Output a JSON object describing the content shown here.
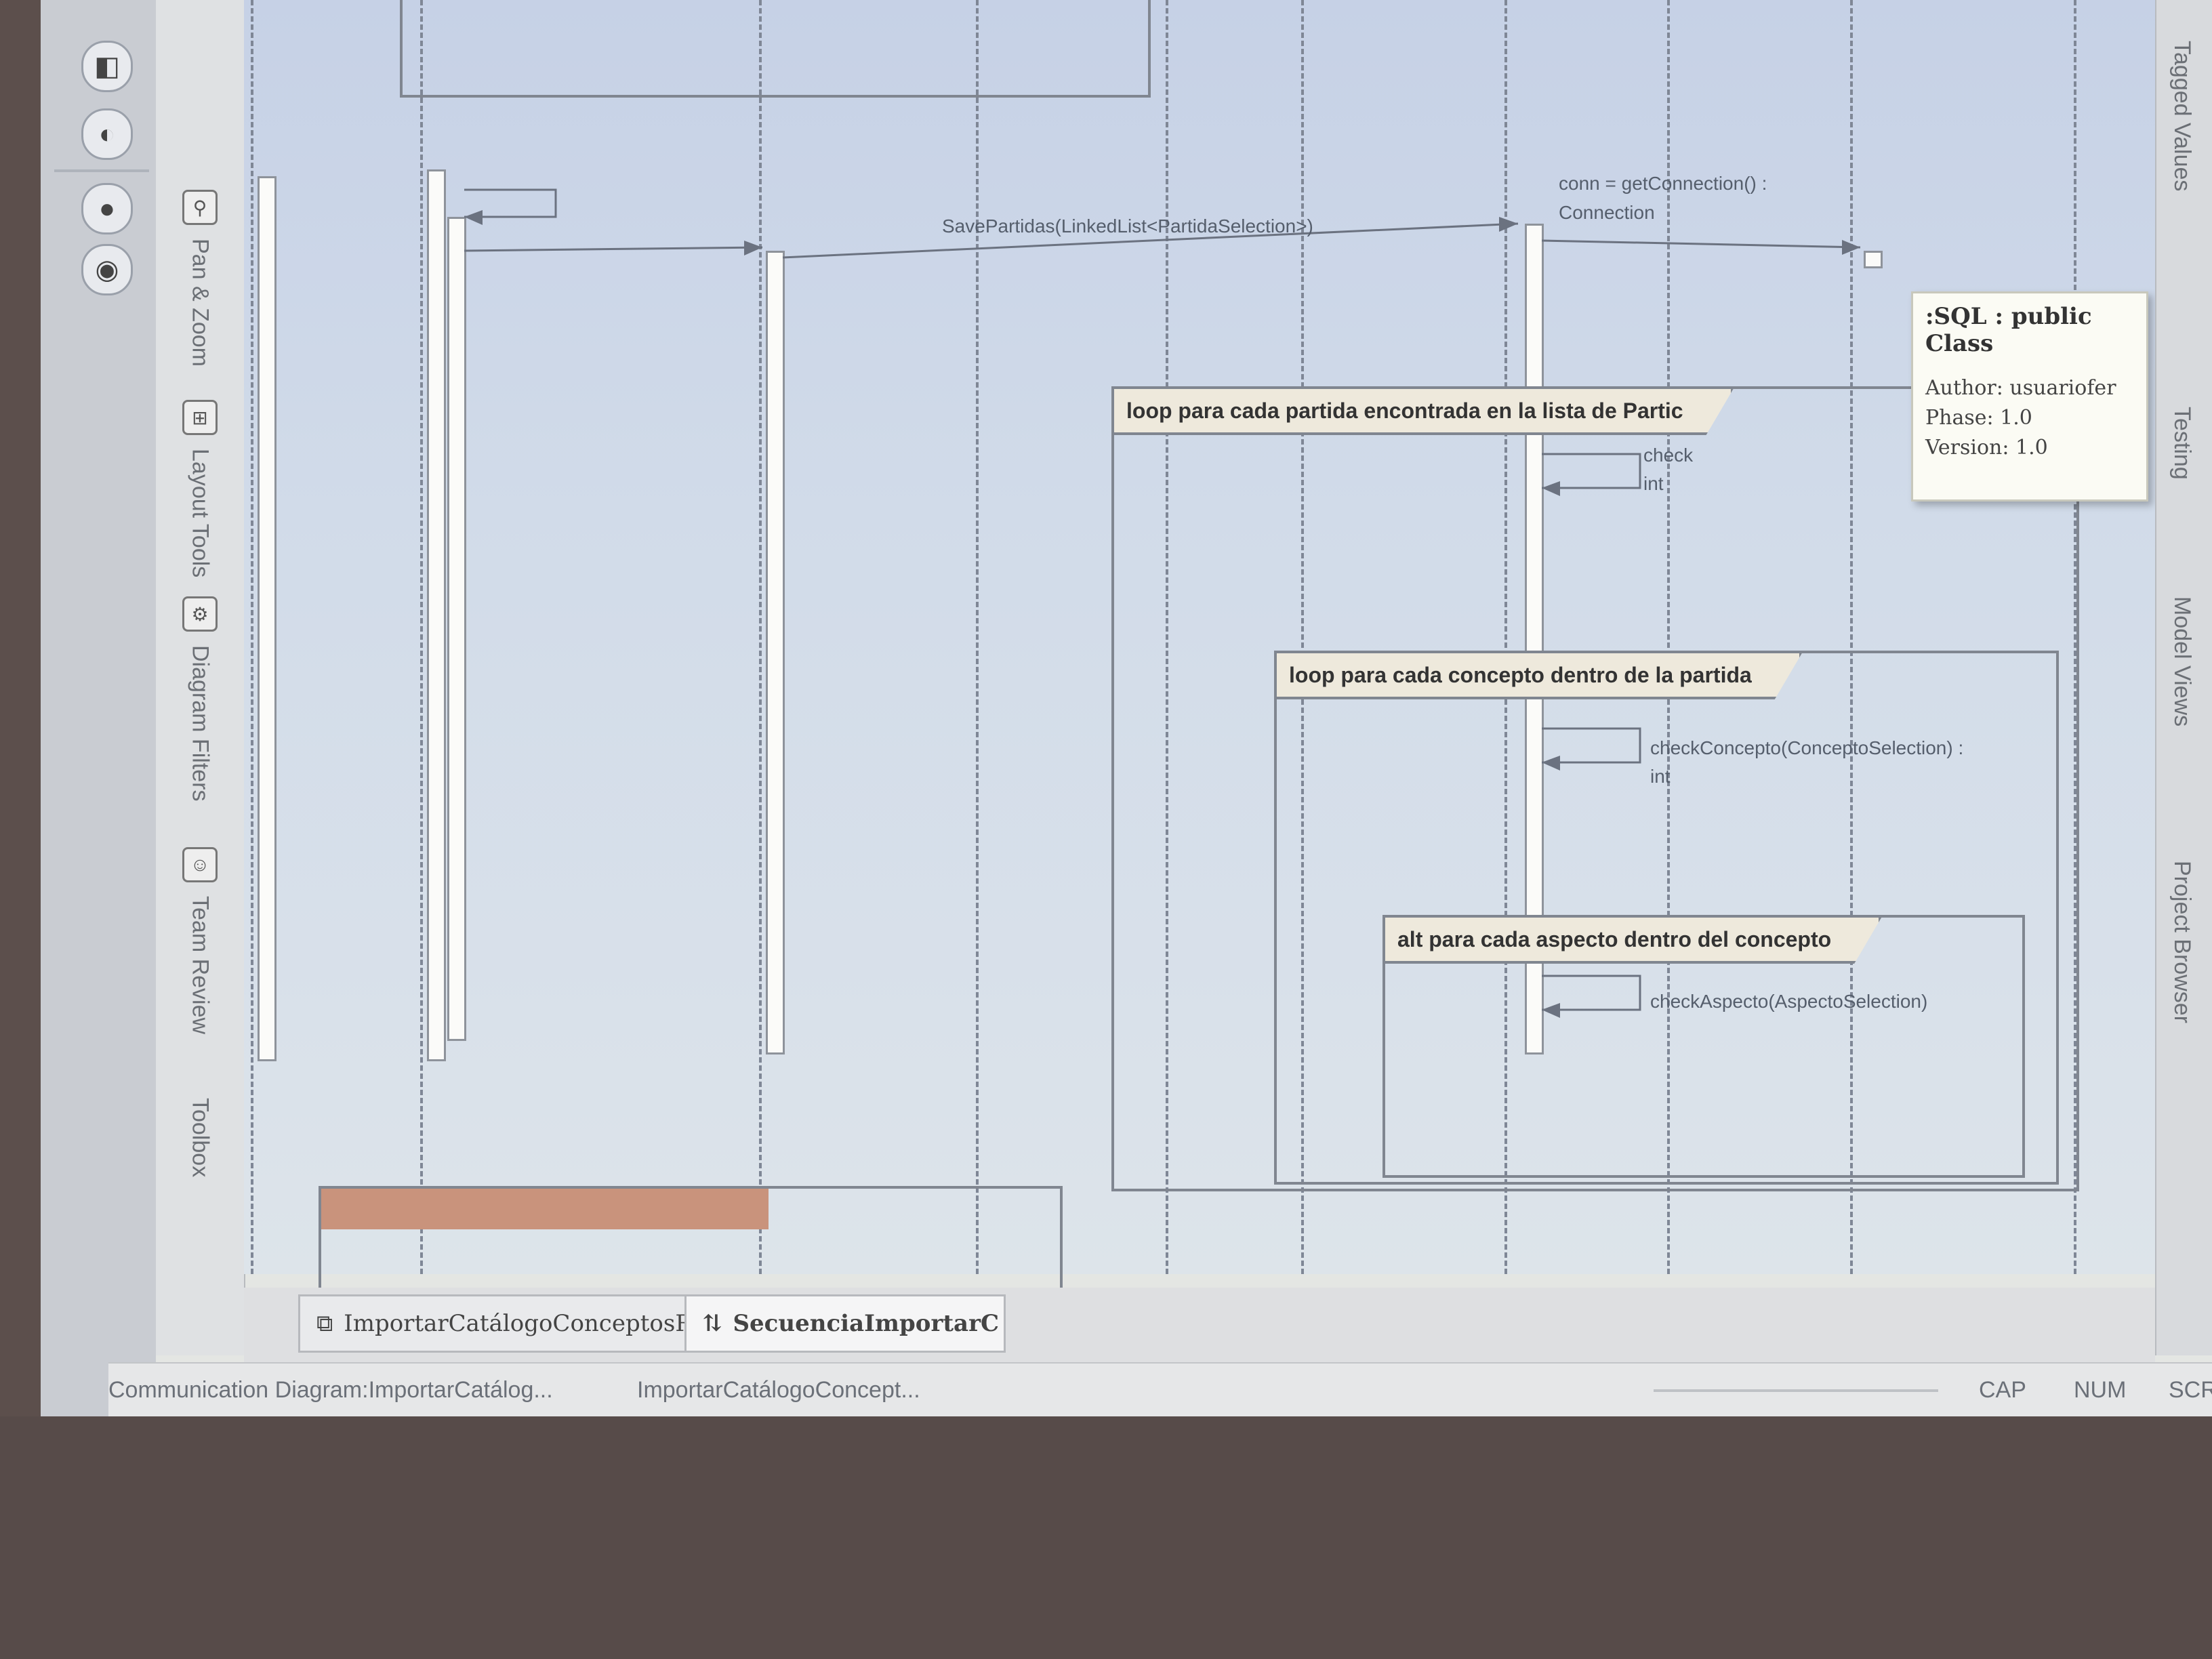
{
  "tool_strip": [
    "Pan & Zoom",
    "Layout Tools",
    "Diagram Filters",
    "Team Review",
    "Toolbox"
  ],
  "right_strip": [
    "Tagged Values",
    "Testing",
    "Model Views",
    "Project Browser"
  ],
  "tooltip": {
    "title": ":SQL : public Class",
    "author": "Author: usuariofer",
    "phase": "Phase: 1.0",
    "version": "Version: 1.0"
  },
  "fragments": {
    "outer_loop": "loop para cada partida encontrada en la lista de Partic",
    "inner_loop": "loop para cada concepto dentro de la partida",
    "alt": "alt para cada aspecto dentro del concepto"
  },
  "messages": {
    "save_partidas": "SavePartidas(LinkedList<PartidaSelection>)",
    "get_connection_1": "conn = getConnection() :",
    "get_connection_2": "Connection",
    "check_concepto_1": "checkConcepto(ConceptoSelection) :",
    "check_concepto_2": "int",
    "check_aspecto": "checkAspecto(AspectoSelection)",
    "check_partial_1": "check",
    "check_partial_2": "int"
  },
  "tabs": [
    {
      "label": "ImportarCatálogoConceptosR",
      "icon": "communication-diagram-icon"
    },
    {
      "label": "SecuenciaImportarC",
      "icon": "sequence-diagram-icon"
    }
  ],
  "status_bar": {
    "diagram": "Communication Diagram:ImportarCatálog...",
    "element": "ImportarCatálogoConcept...",
    "caps": "CAP",
    "num": "NUM",
    "scroll": "SCRL"
  }
}
